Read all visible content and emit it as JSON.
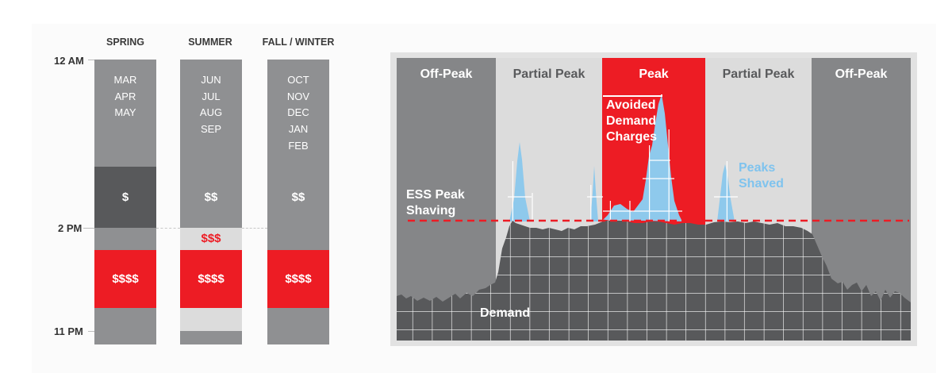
{
  "seasons": [
    {
      "name": "SPRING",
      "months": [
        "MAR",
        "APR",
        "MAY"
      ],
      "mid_price": "$",
      "peak_price": "$$$$"
    },
    {
      "name": "SUMMER",
      "months": [
        "JUN",
        "JUL",
        "AUG",
        "SEP"
      ],
      "mid_price": "$$",
      "partial_peak_price": "$$$",
      "peak_price": "$$$$"
    },
    {
      "name": "FALL / WINTER",
      "months": [
        "OCT",
        "NOV",
        "DEC",
        "JAN",
        "FEB"
      ],
      "mid_price": "$$",
      "peak_price": "$$$$"
    }
  ],
  "time_labels": {
    "start": "12 AM",
    "mid": "2 PM",
    "end": "11 PM"
  },
  "zones": [
    "Off-Peak",
    "Partial Peak",
    "Peak",
    "Partial Peak",
    "Off-Peak"
  ],
  "annotations": {
    "avoided": "Avoided Demand Charges",
    "avoided_lines": [
      "Avoided",
      "Demand",
      "Charges"
    ],
    "peaks_shaved": "Peaks Shaved",
    "peaks_shaved_lines": [
      "Peaks",
      "Shaved"
    ],
    "ess": "ESS Peak Shaving",
    "ess_lines": [
      "ESS Peak",
      "Shaving"
    ],
    "demand": "Demand"
  },
  "colors": {
    "red": "#ed1c24",
    "dark_gray": "#58595b",
    "mid_gray": "#8f9092",
    "light_gray": "#dcdcdc",
    "off_peak_gray": "#858688",
    "peak_blue": "#8ec9ec",
    "blue_text": "#7fc3ee"
  }
}
